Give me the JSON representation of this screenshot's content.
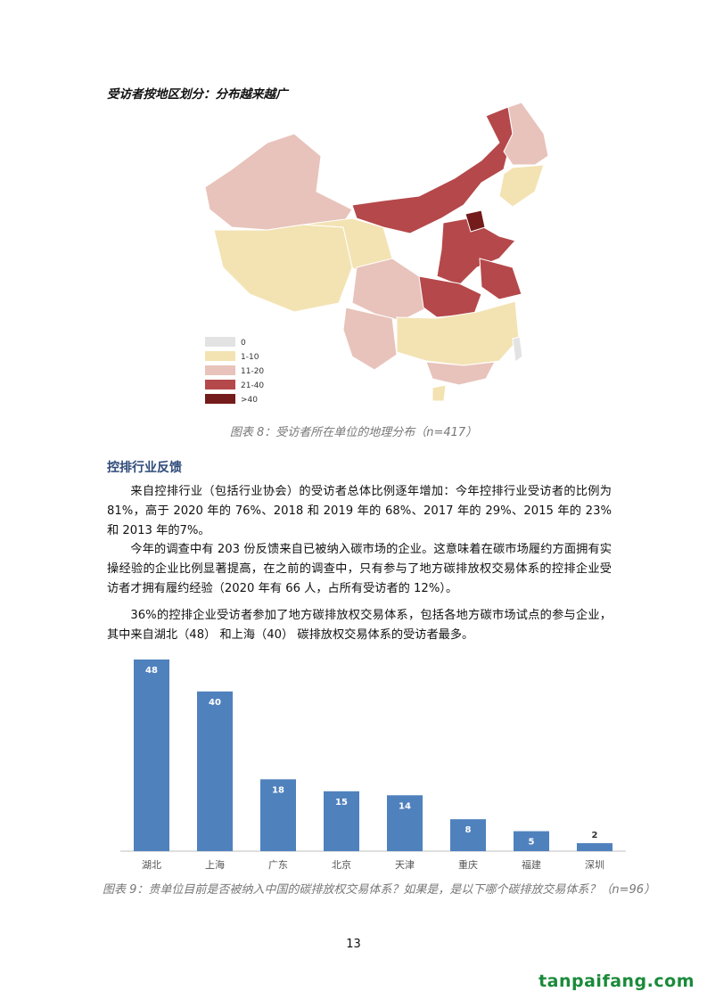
{
  "header": {
    "title": "受访者按地区划分：分布越来越广"
  },
  "map": {
    "legend": [
      {
        "label": "0",
        "color": "#e3e3e3"
      },
      {
        "label": "1-10",
        "color": "#f3e3b3"
      },
      {
        "label": "11-20",
        "color": "#e8c3bb"
      },
      {
        "label": "21-40",
        "color": "#b5484a"
      },
      {
        "label": ">40",
        "color": "#741b1b"
      }
    ],
    "caption": "图表 8：受访者所在单位的地理分布（n=417）"
  },
  "section": {
    "title": "控排行业反馈",
    "paragraphs": [
      "来自控排行业（包括行业协会）的受访者总体比例逐年增加：今年控排行业受访者的比例为81%，高于 2020 年的 76%、2018 和 2019 年的 68%、2017 年的 29%、2015 年的 23%和 2013 年的7%。",
      "今年的调查中有 203 份反馈来自已被纳入碳市场的企业。这意味着在碳市场履约方面拥有实操经验的企业比例显著提高，在之前的调查中，只有参与了地方碳排放权交易体系的控排企业受访者才拥有履约经验（2020 年有 66 人，占所有受访者的 12%）。",
      "36%的控排企业受访者参加了地方碳排放权交易体系，包括各地方碳市场试点的参与企业，其中来自湖北（48） 和上海（40） 碳排放权交易体系的受访者最多。"
    ]
  },
  "chart_data": {
    "type": "bar",
    "categories": [
      "湖北",
      "上海",
      "广东",
      "北京",
      "天津",
      "重庆",
      "福建",
      "深圳"
    ],
    "values": [
      48,
      40,
      18,
      15,
      14,
      8,
      5,
      2
    ],
    "color": "#4f81bd",
    "caption": "图表 9：贵单位目前是否被纳入中国的碳排放权交易体系？如果是，是以下哪个碳排放交易体系？（n=96）"
  },
  "footer": {
    "page_number": "13",
    "watermark": "tanpaifang.com"
  }
}
